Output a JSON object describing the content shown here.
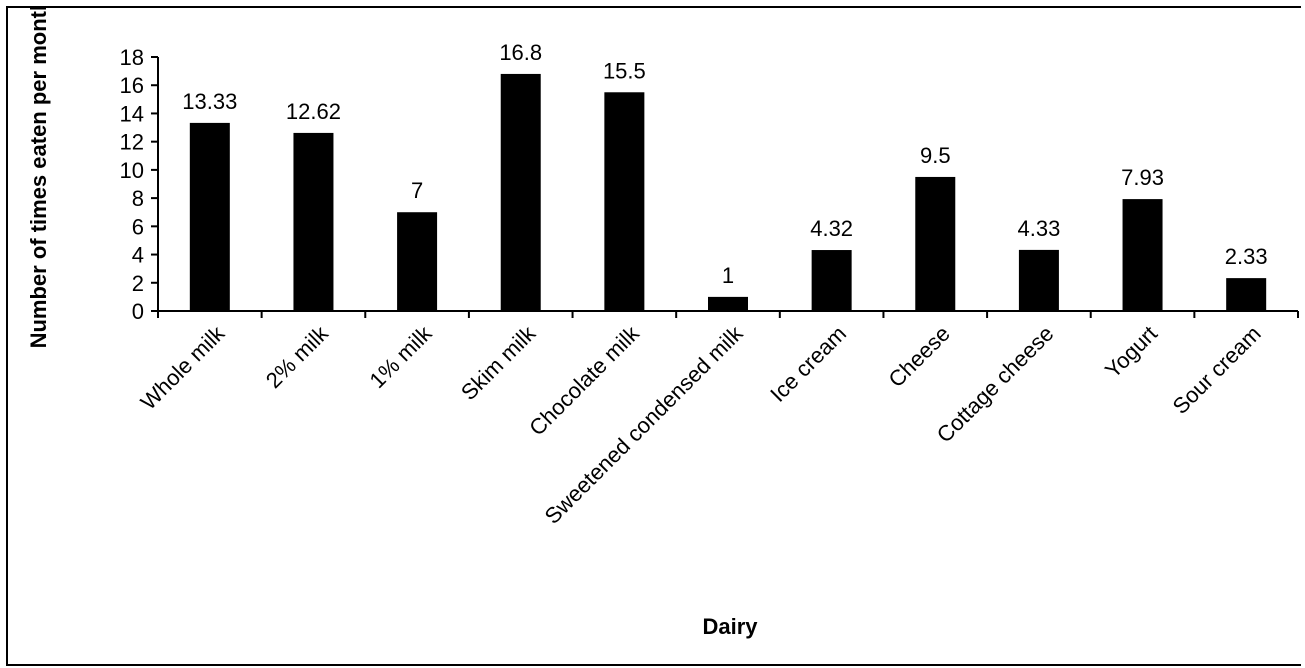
{
  "chart_data": {
    "type": "bar",
    "title": "",
    "xlabel": "Dairy",
    "ylabel": "Number of times eaten per month",
    "ylim": [
      0,
      18
    ],
    "yticks": [
      0,
      2,
      4,
      6,
      8,
      10,
      12,
      14,
      16,
      18
    ],
    "ytick_labels": [
      "0",
      "2",
      "4",
      "6",
      "8",
      "10",
      "12",
      "14",
      "16",
      "18"
    ],
    "grid": false,
    "legend": "none",
    "bar_color": "#000000",
    "categories": [
      "Whole milk",
      "2% milk",
      "1% milk",
      "Skim milk",
      "Chocolate milk",
      "Sweetened condensed milk",
      "Ice cream",
      "Cheese",
      "Cottage cheese",
      "Yogurt",
      "Sour cream"
    ],
    "values": [
      13.33,
      12.62,
      7,
      16.8,
      15.5,
      1,
      4.32,
      9.5,
      4.33,
      7.93,
      2.33
    ],
    "data_labels": [
      "13.33",
      "12.62",
      "7",
      "16.8",
      "15.5",
      "1",
      "4.32",
      "9.5",
      "4.33",
      "7.93",
      "2.33"
    ]
  }
}
